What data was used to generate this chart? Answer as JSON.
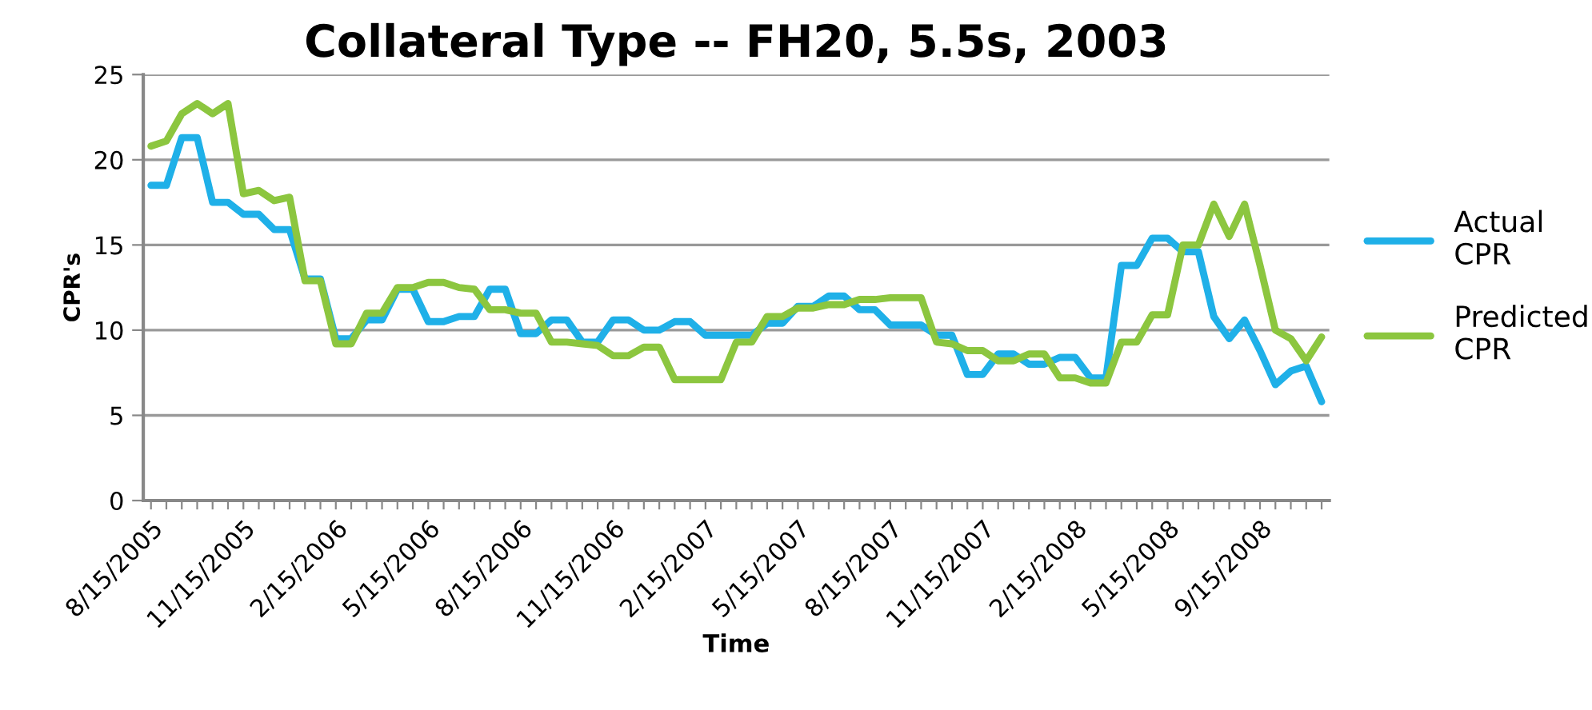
{
  "chart_data": {
    "type": "line",
    "title": "Collateral Type -- FH20, 5.5s, 2003",
    "xlabel": "Time",
    "ylabel": "CPR's",
    "categories": [
      "8/15/2005",
      null,
      null,
      null,
      null,
      null,
      "11/15/2005",
      null,
      null,
      null,
      null,
      null,
      "2/15/2006",
      null,
      null,
      null,
      null,
      null,
      "5/15/2006",
      null,
      null,
      null,
      null,
      null,
      "8/15/2006",
      null,
      null,
      null,
      null,
      null,
      "11/15/2006",
      null,
      null,
      null,
      null,
      null,
      "2/15/2007",
      null,
      null,
      null,
      null,
      null,
      "5/15/2007",
      null,
      null,
      null,
      null,
      null,
      "8/15/2007",
      null,
      null,
      null,
      null,
      null,
      "11/15/2007",
      null,
      null,
      null,
      null,
      null,
      "2/15/2008",
      null,
      null,
      null,
      null,
      null,
      "5/15/2008",
      null,
      null,
      null,
      null,
      null,
      "9/15/2008",
      null,
      null,
      null,
      null
    ],
    "series": [
      {
        "name": "Actual CPR",
        "color": "#1fb0e8",
        "values": [
          18.5,
          18.5,
          21.3,
          21.3,
          17.5,
          17.5,
          16.8,
          16.8,
          15.9,
          15.9,
          13,
          13,
          9.5,
          9.5,
          10.6,
          10.6,
          12.4,
          12.4,
          10.5,
          10.5,
          10.8,
          10.8,
          12.4,
          12.4,
          9.8,
          9.8,
          10.6,
          10.6,
          9.3,
          9.3,
          10.6,
          10.6,
          10.0,
          10.0,
          10.5,
          10.5,
          9.7,
          9.7,
          9.7,
          9.7,
          10.4,
          10.4,
          11.4,
          11.4,
          12.0,
          12.0,
          11.2,
          11.2,
          10.3,
          10.3,
          10.3,
          9.7,
          9.7,
          7.4,
          7.4,
          8.6,
          8.6,
          8.0,
          8.0,
          8.4,
          8.4,
          7.2,
          7.2,
          13.8,
          13.8,
          15.4,
          15.4,
          14.6,
          14.6,
          10.8,
          9.5,
          10.6,
          8.8,
          6.8,
          7.6,
          7.9,
          5.8
        ]
      },
      {
        "name": "Predicted CPR",
        "color": "#8cc63f",
        "values": [
          20.8,
          21.1,
          22.7,
          23.3,
          22.7,
          23.3,
          18,
          18.2,
          17.6,
          17.8,
          12.9,
          12.9,
          9.2,
          9.2,
          11,
          11,
          12.5,
          12.5,
          12.8,
          12.8,
          12.5,
          12.4,
          11.2,
          11.2,
          11,
          11,
          9.3,
          9.3,
          9.2,
          9.1,
          8.5,
          8.5,
          9.0,
          9.0,
          7.1,
          7.1,
          7.1,
          7.1,
          9.3,
          9.3,
          10.8,
          10.8,
          11.3,
          11.3,
          11.5,
          11.5,
          11.8,
          11.8,
          11.9,
          11.9,
          11.9,
          9.3,
          9.2,
          8.8,
          8.8,
          8.2,
          8.2,
          8.6,
          8.6,
          7.2,
          7.2,
          6.9,
          6.9,
          9.3,
          9.3,
          10.9,
          10.9,
          15.0,
          15.0,
          17.4,
          15.5,
          17.4,
          13.8,
          10.0,
          9.5,
          8.2,
          9.6
        ]
      }
    ],
    "ylim": [
      0,
      25
    ],
    "yticks": [
      0,
      5,
      10,
      15,
      20,
      25
    ],
    "grid": "y",
    "legend": "right",
    "marker": "none",
    "line_style": "solid"
  }
}
